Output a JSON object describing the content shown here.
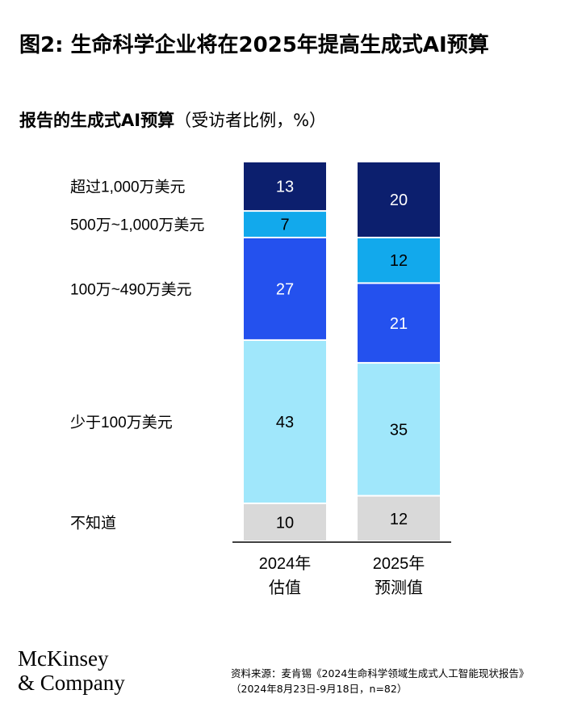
{
  "title": "图2: 生命科学企业将在2025年提高生成式AI预算",
  "subtitle": "报告的生成式AI预算",
  "subtitle_unit": "（受访者比例，%）",
  "chart_data": {
    "type": "bar",
    "stacked": true,
    "orientation": "vertical",
    "categories": [
      "2024年 估值",
      "2025年 预测值"
    ],
    "category_lines": [
      [
        "2024年",
        "估值"
      ],
      [
        "2025年",
        "预测值"
      ]
    ],
    "series": [
      {
        "name": "不知道",
        "values": [
          10,
          12
        ],
        "color": "#d9d9d9",
        "label_color": "#000000"
      },
      {
        "name": "少于100万美元",
        "values": [
          43,
          35
        ],
        "color": "#a0e7fb",
        "label_color": "#000000"
      },
      {
        "name": "100万~490万美元",
        "values": [
          27,
          21
        ],
        "color": "#2451ee",
        "label_color": "#ffffff"
      },
      {
        "name": "500万~1,000万美元",
        "values": [
          7,
          12
        ],
        "color": "#12a9ec",
        "label_color": "#000000"
      },
      {
        "name": "超过1,000万美元",
        "values": [
          13,
          20
        ],
        "color": "#0c1f6e",
        "label_color": "#ffffff"
      }
    ],
    "ylim": [
      0,
      100
    ],
    "legend_position": "left",
    "grid": false
  },
  "logo": {
    "line1": "McKinsey",
    "line2": "& Company"
  },
  "source": "资料来源：麦肯锡《2024生命科学领域生成式人工智能现状报告》（2024年8月23日-9月18日，n=82）"
}
